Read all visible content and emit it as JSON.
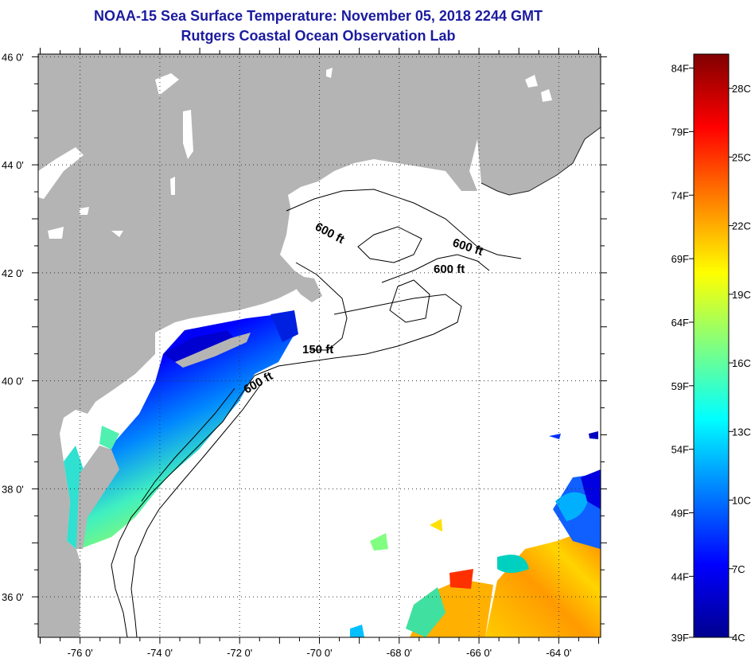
{
  "title": "NOAA-15 Sea Surface Temperature:  November 05, 2018 2244 GMT",
  "subtitle": "Rutgers Coastal Ocean Observation Lab",
  "map": {
    "lat_labels": [
      "46 0'",
      "44 0'",
      "42 0'",
      "40 0'",
      "38 0'",
      "36 0'"
    ],
    "lat_values": [
      46,
      44,
      42,
      40,
      38,
      36
    ],
    "lon_labels": [
      "-76 0'",
      "-74 0'",
      "-72 0'",
      "-70 0'",
      "-68 0'",
      "-66 0'",
      "-64 0'"
    ],
    "lon_values": [
      -76,
      -74,
      -72,
      -70,
      -68,
      -66,
      -64
    ],
    "lat_range": [
      35.25,
      46.05
    ],
    "lon_range": [
      -77.05,
      -62.95
    ],
    "gridlines": true,
    "land_color": "#b4b4b4",
    "ocean_color": "#ffffff",
    "isobaths": [
      {
        "label": "600 ft"
      },
      {
        "label": "600 ft"
      },
      {
        "label": "600 ft"
      },
      {
        "label": "150 ft"
      },
      {
        "label": "600 ft"
      }
    ]
  },
  "colorbar": {
    "fahrenheit_labels": [
      "84F",
      "79F",
      "74F",
      "69F",
      "64F",
      "59F",
      "54F",
      "49F",
      "44F",
      "39F"
    ],
    "celsius_labels": [
      "28C",
      "25C",
      "22C",
      "19C",
      "16C",
      "13C",
      "10C",
      "7C",
      "4C"
    ],
    "min_c": 4,
    "max_c": 29.5,
    "colors": [
      "#00008f",
      "#0000ff",
      "#0080ff",
      "#00ffff",
      "#80ff80",
      "#ffff00",
      "#ff8000",
      "#ff0000",
      "#800000"
    ]
  }
}
